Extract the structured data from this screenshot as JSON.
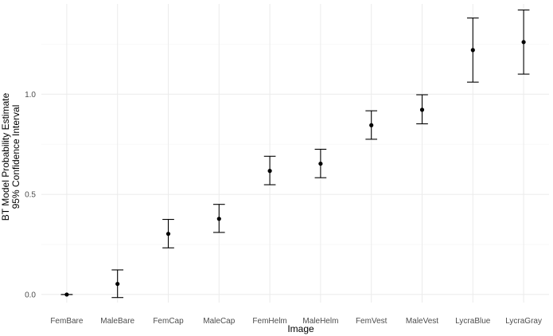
{
  "chart_data": {
    "type": "scatter",
    "error_bars": true,
    "xlabel": "Image",
    "ylabel_lines": [
      "BT Model Probability Estimate",
      "95% Confidence Interval"
    ],
    "categories": [
      "FemBare",
      "MaleBare",
      "FemCap",
      "MaleCap",
      "FemHelm",
      "MaleHelm",
      "FemVest",
      "MaleVest",
      "LycraBlue",
      "LycraGray"
    ],
    "points": [
      {
        "x": "FemBare",
        "estimate": 0.0,
        "lower": 0.0,
        "upper": 0.0
      },
      {
        "x": "MaleBare",
        "estimate": 0.053,
        "lower": -0.015,
        "upper": 0.123
      },
      {
        "x": "FemCap",
        "estimate": 0.303,
        "lower": 0.233,
        "upper": 0.375
      },
      {
        "x": "MaleCap",
        "estimate": 0.378,
        "lower": 0.31,
        "upper": 0.45
      },
      {
        "x": "FemHelm",
        "estimate": 0.617,
        "lower": 0.548,
        "upper": 0.69
      },
      {
        "x": "MaleHelm",
        "estimate": 0.653,
        "lower": 0.583,
        "upper": 0.725
      },
      {
        "x": "FemVest",
        "estimate": 0.845,
        "lower": 0.775,
        "upper": 0.917
      },
      {
        "x": "MaleVest",
        "estimate": 0.922,
        "lower": 0.852,
        "upper": 0.997
      },
      {
        "x": "LycraBlue",
        "estimate": 1.22,
        "lower": 1.06,
        "upper": 1.38
      },
      {
        "x": "LycraGray",
        "estimate": 1.26,
        "lower": 1.1,
        "upper": 1.42
      }
    ],
    "y_ticks": [
      0.0,
      0.5,
      1.0
    ],
    "y_tick_labels": [
      "0.0",
      "0.5",
      "1.0"
    ],
    "ylim": [
      -0.04,
      1.45
    ],
    "grid": true,
    "legend": "none",
    "colors": {
      "point": "#000000",
      "grid_major": "#ebebeb",
      "grid_minor": "#f5f5f5",
      "tick_text": "#4d4d4d"
    }
  }
}
